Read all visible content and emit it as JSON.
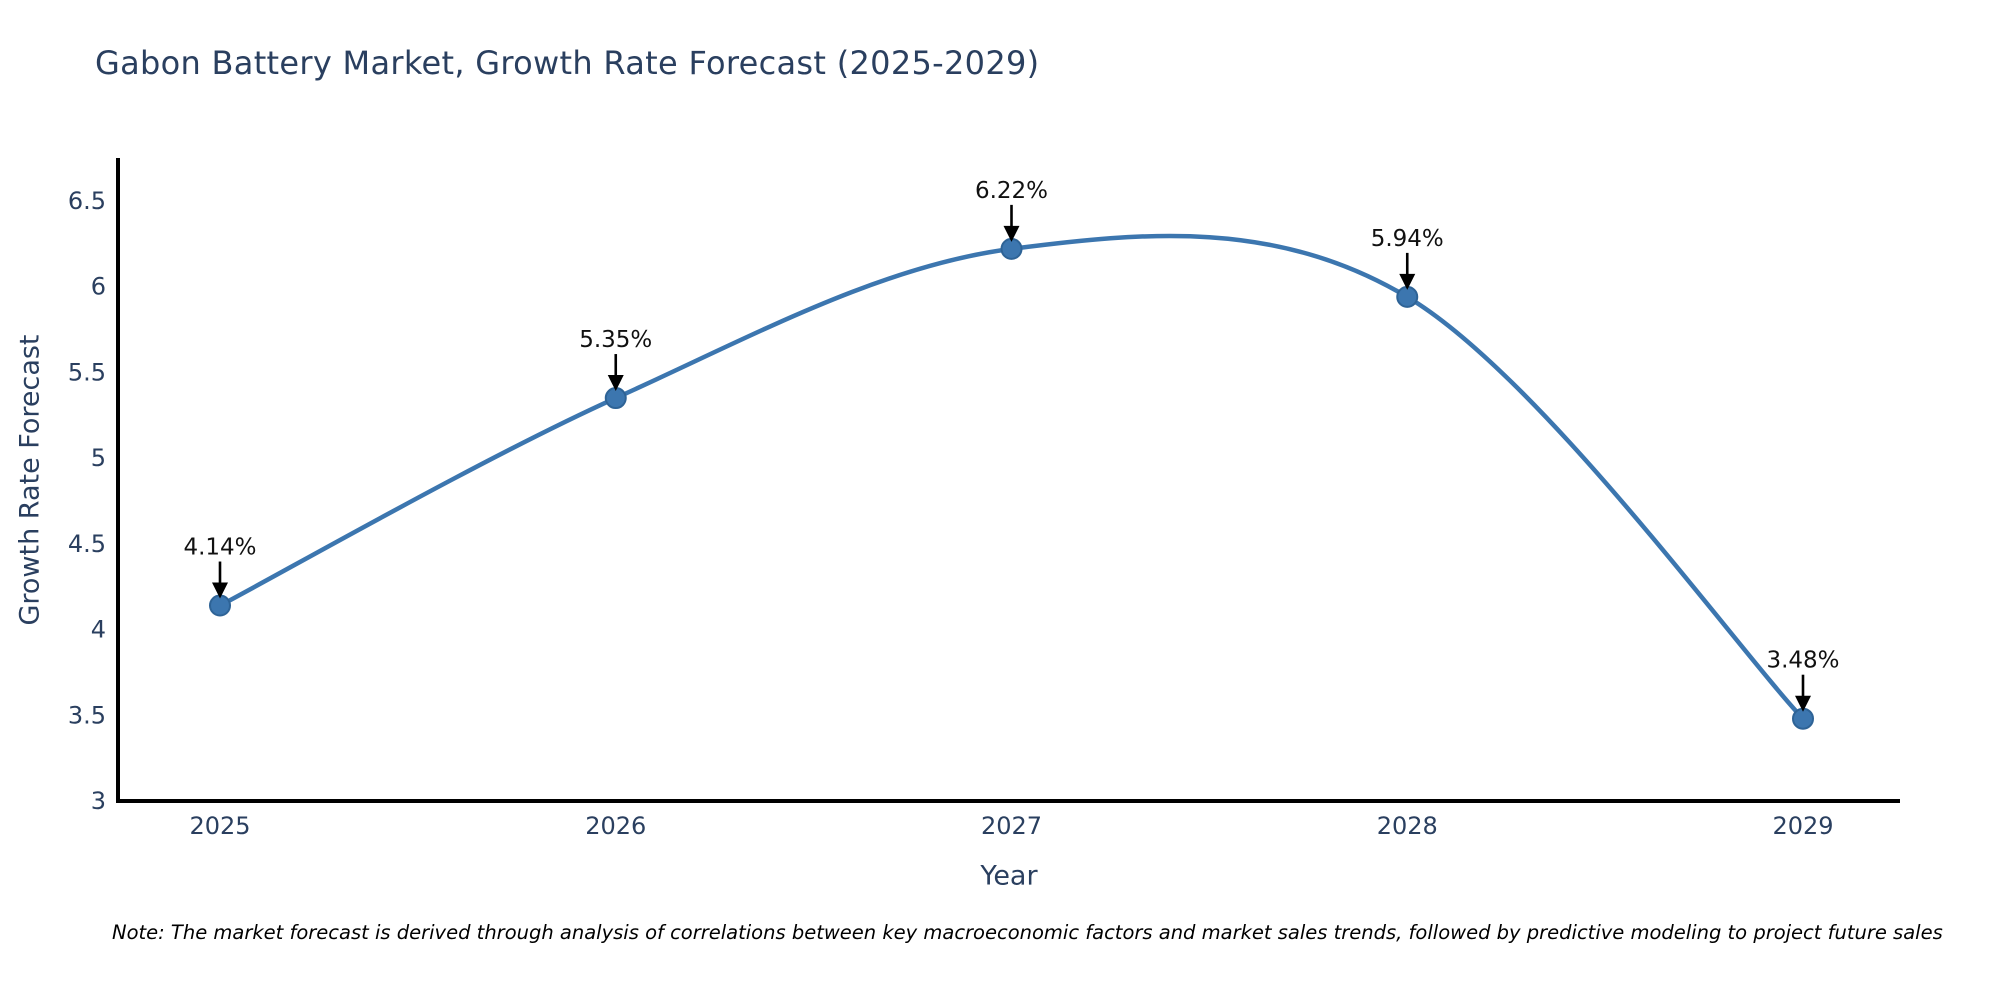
{
  "page": {
    "note": "Note: The market forecast is derived through analysis of correlations between key macroeconomic factors and market sales trends, followed by predictive modeling to project future sales"
  },
  "chart_data": {
    "type": "line",
    "title": "Gabon Battery Market, Growth Rate Forecast (2025-2029)",
    "xlabel": "Year",
    "ylabel": "Growth Rate Forecast",
    "x": [
      2025,
      2026,
      2027,
      2028,
      2029
    ],
    "y": [
      4.14,
      5.35,
      6.22,
      5.94,
      3.48
    ],
    "point_labels": [
      "4.14%",
      "5.35%",
      "6.22%",
      "5.94%",
      "3.48%"
    ],
    "xtick_labels": [
      "2025",
      "2026",
      "2027",
      "2028",
      "2029"
    ],
    "ytick_values": [
      3,
      3.5,
      4,
      4.5,
      5,
      5.5,
      6,
      6.5
    ],
    "ytick_labels": [
      "3",
      "3.5",
      "4",
      "4.5",
      "5",
      "5.5",
      "6",
      "6.5"
    ],
    "ylim": [
      3.0,
      6.75
    ],
    "line_shape": "spline",
    "grid": false,
    "legend": false,
    "colors": {
      "line": "#3c76af",
      "marker_fill": "#3c76af",
      "marker_edge": "#2e6396",
      "axis_line": "#000000",
      "tick_text": "#2a3f5f",
      "annotation_text": "#111111",
      "arrow": "#000000",
      "title_text": "#2a3f5f",
      "background": "#ffffff"
    }
  }
}
